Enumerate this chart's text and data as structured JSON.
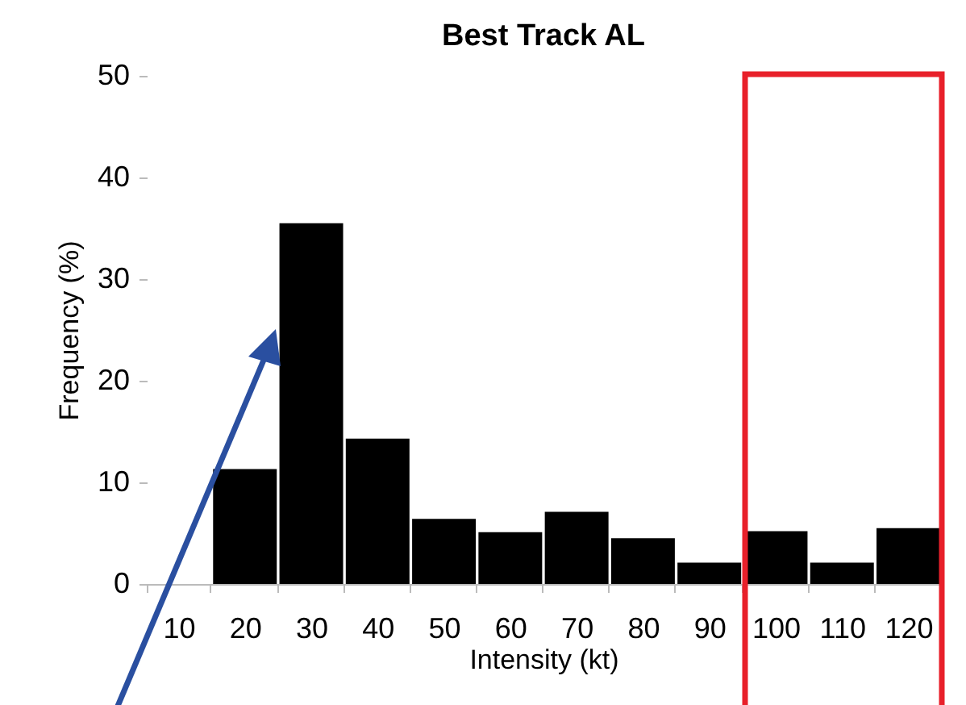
{
  "chart_data": {
    "type": "bar",
    "title": "Best Track AL",
    "xlabel": "Intensity (kt)",
    "ylabel": "Frequency (%)",
    "categories": [
      "10",
      "20",
      "30",
      "40",
      "50",
      "60",
      "70",
      "80",
      "90",
      "100",
      "110",
      "120"
    ],
    "values": [
      null,
      11.3,
      35.5,
      14.3,
      6.4,
      5.1,
      7.1,
      4.5,
      2.1,
      5.2,
      2.1,
      5.5
    ],
    "color": "#000000",
    "ylim": [
      0,
      50
    ],
    "yticks": [
      0,
      10,
      20,
      30,
      40,
      50
    ]
  }
}
